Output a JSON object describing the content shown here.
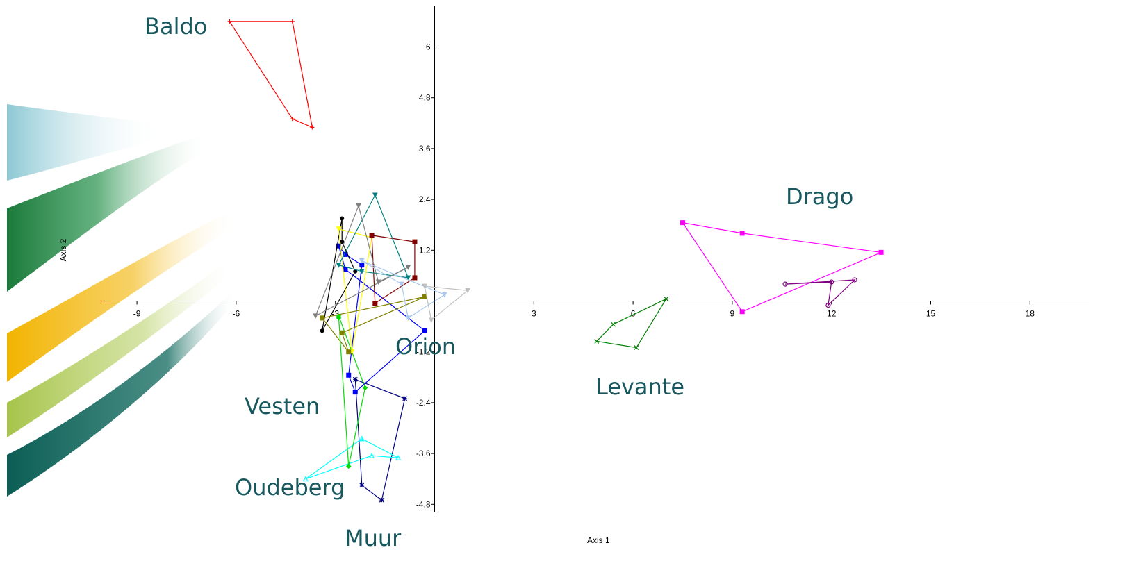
{
  "chart_data": {
    "type": "scatter",
    "title": "",
    "xlabel": "Axis 1",
    "ylabel": "Axis 2",
    "xlim": [
      -11,
      20.5
    ],
    "ylim": [
      -5.0,
      7.0
    ],
    "x_ticks": [
      "-9",
      "-6",
      "-3",
      "3",
      "6",
      "9",
      "12",
      "15",
      "18"
    ],
    "y_ticks": [
      "6",
      "4.8",
      "3.6",
      "2.4",
      "1.2",
      "-1.2",
      "-2.4",
      "-3.6",
      "-4.8"
    ],
    "grid": false,
    "group_labels": [
      "Baldo",
      "Drago",
      "Orion",
      "Vesten",
      "Levante",
      "Oudeberg",
      "Muur"
    ],
    "series": [
      {
        "name": "Baldo",
        "color": "#ff0000",
        "marker": "plus",
        "points": [
          [
            -6.2,
            6.6
          ],
          [
            -4.3,
            6.6
          ],
          [
            -3.7,
            4.1
          ],
          [
            -4.3,
            4.3
          ]
        ]
      },
      {
        "name": "Drago",
        "color": "#ff00ff",
        "marker": "square",
        "points": [
          [
            7.5,
            1.85
          ],
          [
            9.3,
            1.6
          ],
          [
            13.5,
            1.15
          ],
          [
            9.3,
            -0.25
          ]
        ]
      },
      {
        "name": "Levante",
        "color": "#008000",
        "marker": "x",
        "points": [
          [
            4.9,
            -0.95
          ],
          [
            5.4,
            -0.55
          ],
          [
            7.0,
            0.05
          ],
          [
            6.1,
            -1.1
          ]
        ]
      },
      {
        "name": "Muur",
        "color": "#000080",
        "marker": "star",
        "points": [
          [
            -2.4,
            -1.85
          ],
          [
            -0.9,
            -2.3
          ],
          [
            -1.6,
            -4.7
          ],
          [
            -2.2,
            -4.35
          ]
        ]
      },
      {
        "name": "Oudeberg",
        "color": "#00ffff",
        "marker": "triangle",
        "points": [
          [
            -3.9,
            -4.2
          ],
          [
            -2.2,
            -3.25
          ],
          [
            -1.1,
            -3.7
          ],
          [
            -1.9,
            -3.65
          ]
        ]
      },
      {
        "name": "Vesten",
        "color": "#00dd00",
        "marker": "diamond",
        "points": [
          [
            -2.9,
            -0.35
          ],
          [
            -2.1,
            -2.05
          ],
          [
            -2.6,
            -3.9
          ],
          [
            -2.9,
            -0.4
          ]
        ]
      },
      {
        "name": "Orion",
        "color": "#0000ff",
        "marker": "square",
        "points": [
          [
            -2.6,
            -1.75
          ],
          [
            -2.4,
            -2.15
          ],
          [
            -0.3,
            -0.7
          ],
          [
            -2.7,
            0.75
          ],
          [
            -2.9,
            1.3
          ],
          [
            -2.7,
            1.1
          ],
          [
            -2.2,
            0.85
          ]
        ]
      },
      {
        "name": "",
        "color": "#000000",
        "marker": "dot",
        "points": [
          [
            -2.8,
            1.95
          ],
          [
            -2.8,
            1.4
          ],
          [
            -2.4,
            0.7
          ],
          [
            -3.4,
            -0.7
          ]
        ]
      },
      {
        "name": "",
        "color": "#ffff00",
        "marker": "triangle-down",
        "points": [
          [
            -2.9,
            1.7
          ],
          [
            -1.9,
            1.5
          ],
          [
            -2.5,
            -1.2
          ]
        ]
      },
      {
        "name": "",
        "color": "#800000",
        "marker": "square",
        "points": [
          [
            -1.9,
            1.55
          ],
          [
            -0.6,
            1.4
          ],
          [
            -0.6,
            0.55
          ],
          [
            -1.8,
            -0.05
          ]
        ]
      },
      {
        "name": "",
        "color": "#008080",
        "marker": "triangle-down",
        "points": [
          [
            -1.8,
            2.5
          ],
          [
            -0.8,
            0.55
          ],
          [
            -2.2,
            0.7
          ],
          [
            -2.9,
            0.85
          ]
        ]
      },
      {
        "name": "",
        "color": "#808080",
        "marker": "triangle-down",
        "points": [
          [
            -2.3,
            2.25
          ],
          [
            -3.6,
            -0.35
          ],
          [
            -0.8,
            0.8
          ],
          [
            -1.7,
            0.45
          ]
        ]
      },
      {
        "name": "",
        "color": "#808000",
        "marker": "square",
        "points": [
          [
            -0.3,
            0.1
          ],
          [
            -3.4,
            -0.4
          ],
          [
            -2.6,
            -1.2
          ],
          [
            -2.8,
            -0.75
          ]
        ]
      },
      {
        "name": "",
        "color": "#a8c8f0",
        "marker": "triangle-down",
        "points": [
          [
            -2.2,
            0.95
          ],
          [
            0.3,
            0.15
          ],
          [
            -0.8,
            -0.4
          ],
          [
            -1.0,
            0.4
          ]
        ]
      },
      {
        "name": "",
        "color": "#c0c0c0",
        "marker": "triangle-down",
        "points": [
          [
            -0.3,
            0.35
          ],
          [
            1.0,
            0.25
          ],
          [
            -0.1,
            -0.45
          ]
        ]
      },
      {
        "name": "",
        "color": "#800080",
        "marker": "circle",
        "points": [
          [
            10.6,
            0.4
          ],
          [
            12.7,
            0.5
          ],
          [
            11.9,
            -0.1
          ],
          [
            12.0,
            0.45
          ]
        ]
      }
    ]
  }
}
